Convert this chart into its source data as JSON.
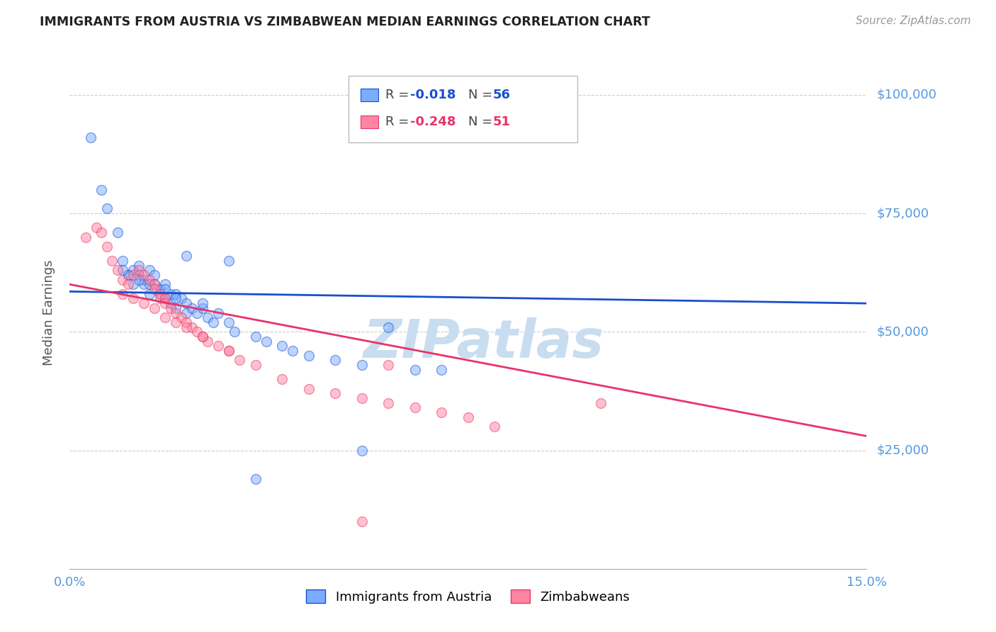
{
  "title": "IMMIGRANTS FROM AUSTRIA VS ZIMBABWEAN MEDIAN EARNINGS CORRELATION CHART",
  "source": "Source: ZipAtlas.com",
  "ylabel": "Median Earnings",
  "xmin": 0.0,
  "xmax": 0.15,
  "ymin": 0,
  "ymax": 108000,
  "color_blue": "#7aacff",
  "color_pink": "#ff85a0",
  "color_blue_line": "#1a4fcc",
  "color_pink_line": "#e8336a",
  "color_axis_labels": "#5599dd",
  "color_title": "#222222",
  "color_watermark": "#c8ddf0",
  "scatter_alpha": 0.5,
  "scatter_size": 100,
  "austria_x": [
    0.004,
    0.006,
    0.007,
    0.009,
    0.01,
    0.011,
    0.012,
    0.012,
    0.013,
    0.013,
    0.014,
    0.014,
    0.015,
    0.015,
    0.016,
    0.016,
    0.017,
    0.017,
    0.018,
    0.018,
    0.019,
    0.019,
    0.02,
    0.02,
    0.021,
    0.022,
    0.022,
    0.023,
    0.024,
    0.025,
    0.026,
    0.027,
    0.028,
    0.03,
    0.031,
    0.035,
    0.037,
    0.04,
    0.042,
    0.045,
    0.05,
    0.055,
    0.06,
    0.065,
    0.07,
    0.055,
    0.035,
    0.025,
    0.02,
    0.018,
    0.015,
    0.013,
    0.011,
    0.01,
    0.022,
    0.03
  ],
  "austria_y": [
    91000,
    80000,
    76000,
    71000,
    65000,
    62000,
    63000,
    60000,
    64000,
    62000,
    61000,
    60000,
    63000,
    58000,
    62000,
    60000,
    59000,
    58000,
    57000,
    60000,
    58000,
    56000,
    58000,
    55000,
    57000,
    56000,
    54000,
    55000,
    54000,
    55000,
    53000,
    52000,
    54000,
    52000,
    50000,
    49000,
    48000,
    47000,
    46000,
    45000,
    44000,
    43000,
    51000,
    42000,
    42000,
    25000,
    19000,
    56000,
    57000,
    59000,
    60000,
    61000,
    62000,
    63000,
    66000,
    65000
  ],
  "zimbabwe_x": [
    0.003,
    0.005,
    0.006,
    0.007,
    0.008,
    0.009,
    0.01,
    0.011,
    0.012,
    0.013,
    0.014,
    0.015,
    0.016,
    0.016,
    0.017,
    0.017,
    0.018,
    0.018,
    0.019,
    0.02,
    0.021,
    0.022,
    0.023,
    0.024,
    0.025,
    0.026,
    0.028,
    0.03,
    0.032,
    0.035,
    0.04,
    0.045,
    0.05,
    0.055,
    0.06,
    0.06,
    0.065,
    0.07,
    0.075,
    0.08,
    0.01,
    0.012,
    0.014,
    0.016,
    0.018,
    0.02,
    0.022,
    0.025,
    0.03,
    0.1,
    0.055
  ],
  "zimbabwe_y": [
    70000,
    72000,
    71000,
    68000,
    65000,
    63000,
    61000,
    60000,
    62000,
    63000,
    62000,
    61000,
    60000,
    59000,
    58000,
    57000,
    57000,
    56000,
    55000,
    54000,
    53000,
    52000,
    51000,
    50000,
    49000,
    48000,
    47000,
    46000,
    44000,
    43000,
    40000,
    38000,
    37000,
    36000,
    35000,
    43000,
    34000,
    33000,
    32000,
    30000,
    58000,
    57000,
    56000,
    55000,
    53000,
    52000,
    51000,
    49000,
    46000,
    35000,
    10000
  ],
  "blue_line_x": [
    0.0,
    0.15
  ],
  "blue_line_y": [
    58500,
    56000
  ],
  "pink_line_x": [
    0.0,
    0.15
  ],
  "pink_line_y": [
    60000,
    28000
  ]
}
